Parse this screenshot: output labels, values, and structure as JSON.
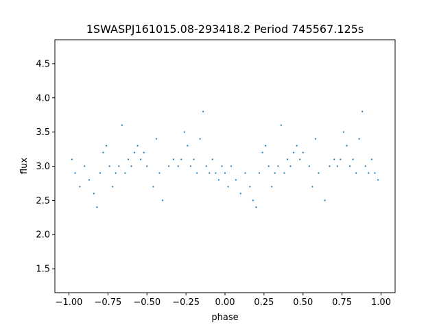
{
  "chart_data": {
    "type": "scatter",
    "title": "1SWASPJ161015.08-293418.2 Period 745567.125s",
    "xlabel": "phase",
    "ylabel": "flux",
    "xlim": [
      -1.09,
      1.09
    ],
    "ylim": [
      1.15,
      4.85
    ],
    "xticks": [
      -1.0,
      -0.75,
      -0.5,
      -0.25,
      0.0,
      0.25,
      0.5,
      0.75,
      1.0
    ],
    "xtick_labels": [
      "−1.00",
      "−0.75",
      "−0.50",
      "−0.25",
      "0.00",
      "0.25",
      "0.50",
      "0.75",
      "1.00"
    ],
    "yticks": [
      1.5,
      2.0,
      2.5,
      3.0,
      3.5,
      4.0,
      4.5
    ],
    "ytick_labels": [
      "1.5",
      "2.0",
      "2.5",
      "3.0",
      "3.5",
      "4.0",
      "4.5"
    ],
    "grid": false,
    "marker_color": "#1f77b4",
    "series": [
      {
        "x": [
          -0.98,
          -0.96,
          -0.93,
          -0.9,
          -0.87,
          -0.84,
          -0.82,
          -0.8,
          -0.78,
          -0.76,
          -0.74,
          -0.72,
          -0.7,
          -0.68,
          -0.66,
          -0.64,
          -0.62,
          -0.6,
          -0.58,
          -0.56,
          -0.54,
          -0.52,
          -0.5,
          -0.46,
          -0.44,
          -0.42,
          -0.4,
          -0.36,
          -0.33,
          -0.3,
          -0.28,
          -0.26,
          -0.24,
          -0.22,
          -0.2,
          -0.18,
          -0.16,
          -0.14,
          -0.12,
          -0.1,
          -0.08,
          -0.06,
          -0.04,
          -0.02,
          0.0,
          0.02,
          0.04,
          0.07,
          0.1,
          0.13,
          0.16,
          0.18,
          0.2,
          0.22,
          0.24,
          0.26,
          0.28,
          0.3,
          0.32,
          0.34,
          0.36,
          0.38,
          0.4,
          0.42,
          0.44,
          0.46,
          0.48,
          0.5,
          0.54,
          0.56,
          0.58,
          0.6,
          0.64,
          0.67,
          0.7,
          0.72,
          0.74,
          0.76,
          0.78,
          0.8,
          0.82,
          0.84,
          0.86,
          0.88,
          0.9,
          0.92,
          0.94,
          0.96,
          0.98
        ],
        "y": [
          3.1,
          2.9,
          2.7,
          3.0,
          2.8,
          2.6,
          2.4,
          2.9,
          3.2,
          3.3,
          3.0,
          2.7,
          2.9,
          3.0,
          3.6,
          2.9,
          3.1,
          3.0,
          3.2,
          3.3,
          3.1,
          3.2,
          3.0,
          2.7,
          3.4,
          2.9,
          2.5,
          3.0,
          3.1,
          3.0,
          3.1,
          3.5,
          3.3,
          3.0,
          3.1,
          2.9,
          3.4,
          3.8,
          3.0,
          2.9,
          3.1,
          2.9,
          2.8,
          3.0,
          2.9,
          2.7,
          3.0,
          2.8,
          2.6,
          2.9,
          2.7,
          2.5,
          2.4,
          2.9,
          3.2,
          3.3,
          3.0,
          2.7,
          2.9,
          3.0,
          3.6,
          2.9,
          3.1,
          3.0,
          3.2,
          3.3,
          3.1,
          3.2,
          3.0,
          2.7,
          3.4,
          2.9,
          2.5,
          3.0,
          3.1,
          3.0,
          3.1,
          3.5,
          3.3,
          3.0,
          3.1,
          2.9,
          3.4,
          3.8,
          3.0,
          2.9,
          3.1,
          2.9,
          2.8
        ]
      }
    ]
  }
}
